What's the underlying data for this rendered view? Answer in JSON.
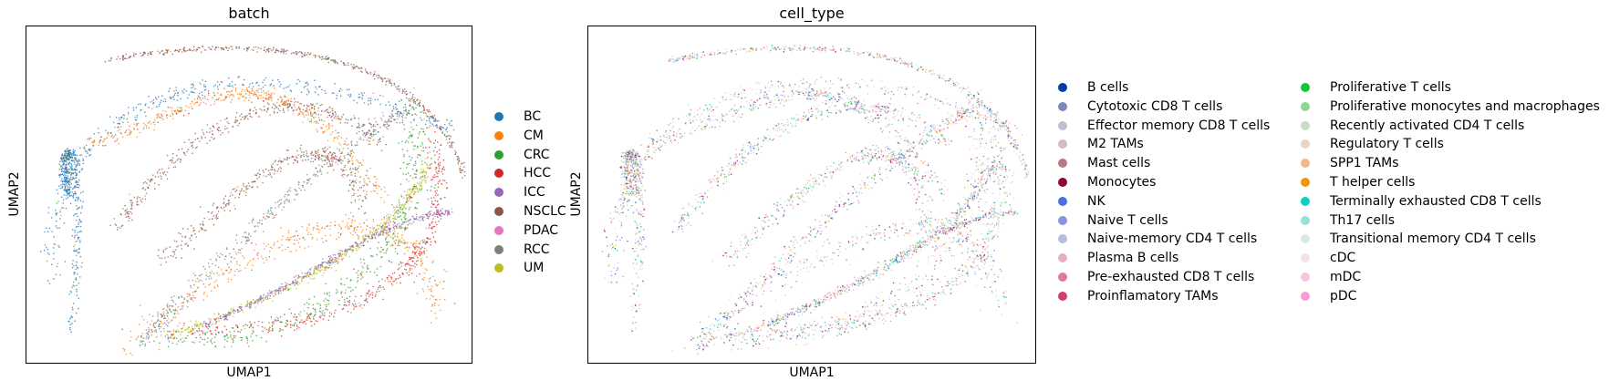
{
  "chart_data": [
    {
      "type": "scatter",
      "title": "batch",
      "xlabel": "UMAP1",
      "ylabel": "UMAP2",
      "grid": false,
      "legend_position": "right",
      "series": [
        {
          "name": "BC",
          "color": "#1f77b4"
        },
        {
          "name": "CM",
          "color": "#ff7f0e"
        },
        {
          "name": "CRC",
          "color": "#2ca02c"
        },
        {
          "name": "HCC",
          "color": "#d62728"
        },
        {
          "name": "ICC",
          "color": "#9467bd"
        },
        {
          "name": "NSCLC",
          "color": "#8c564b"
        },
        {
          "name": "PDAC",
          "color": "#e377c2"
        },
        {
          "name": "RCC",
          "color": "#7f7f7f"
        },
        {
          "name": "UM",
          "color": "#bcbd22"
        }
      ]
    },
    {
      "type": "scatter",
      "title": "cell_type",
      "xlabel": "UMAP1",
      "ylabel": "UMAP2",
      "grid": false,
      "legend_position": "right",
      "series": [
        {
          "name": "B cells",
          "color": "#023fa5"
        },
        {
          "name": "Cytotoxic CD8 T cells",
          "color": "#7d87b9"
        },
        {
          "name": "Effector memory CD8 T cells",
          "color": "#bec1d4"
        },
        {
          "name": "M2 TAMs",
          "color": "#d6bcc0"
        },
        {
          "name": "Mast cells",
          "color": "#bb7784"
        },
        {
          "name": "Monocytes",
          "color": "#8e063b"
        },
        {
          "name": "NK",
          "color": "#4a6fe3"
        },
        {
          "name": "Naive T cells",
          "color": "#8595e1"
        },
        {
          "name": "Naive-memory CD4 T cells",
          "color": "#b5bbe3"
        },
        {
          "name": "Plasma B cells",
          "color": "#e6afb9"
        },
        {
          "name": "Pre-exhausted CD8 T cells",
          "color": "#e07b91"
        },
        {
          "name": "Proinflamatory TAMs",
          "color": "#d33f6a"
        },
        {
          "name": "Proliferative T cells",
          "color": "#11c638"
        },
        {
          "name": "Proliferative monocytes and macrophages",
          "color": "#8dd593"
        },
        {
          "name": "Recently activated CD4 T cells",
          "color": "#c6dec7"
        },
        {
          "name": "Regulatory T cells",
          "color": "#ead3c6"
        },
        {
          "name": "SPP1 TAMs",
          "color": "#f0b98d"
        },
        {
          "name": "T helper cells",
          "color": "#ef9708"
        },
        {
          "name": "Terminally exhausted CD8 T cells",
          "color": "#0fcfc0"
        },
        {
          "name": "Th17 cells",
          "color": "#9cded6"
        },
        {
          "name": "Transitional memory CD4 T cells",
          "color": "#d5eae7"
        },
        {
          "name": "cDC",
          "color": "#f3e1eb"
        },
        {
          "name": "mDC",
          "color": "#f6c4e1"
        },
        {
          "name": "pDC",
          "color": "#f79cd4"
        }
      ]
    }
  ]
}
